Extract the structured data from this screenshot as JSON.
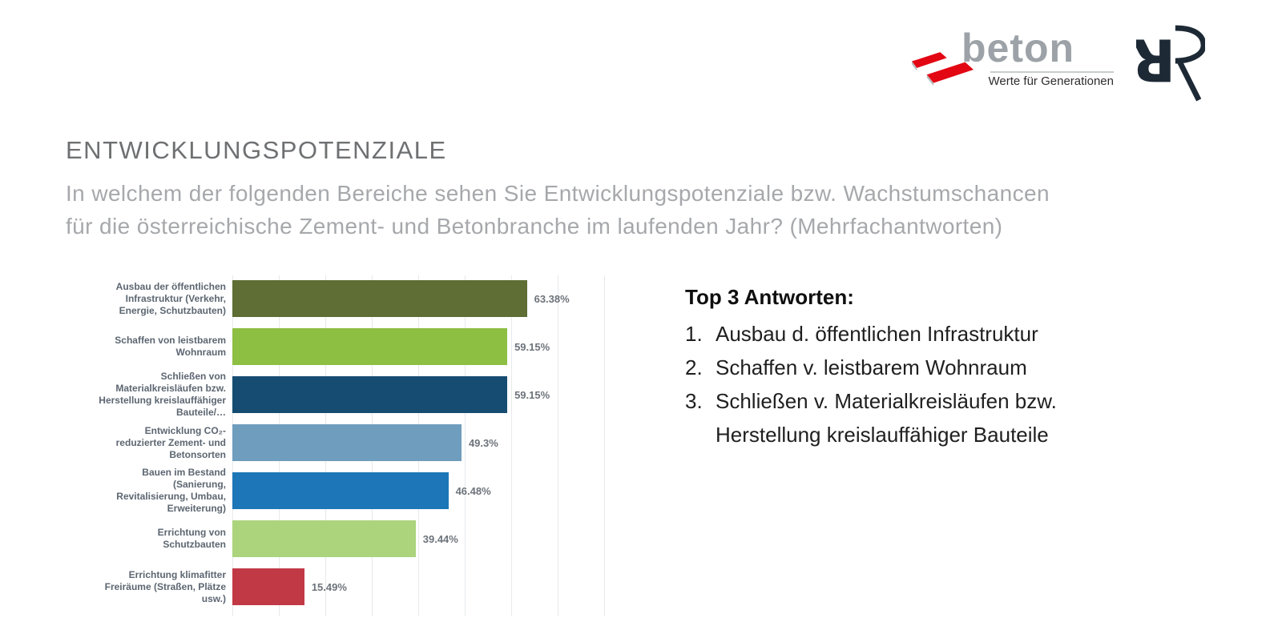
{
  "logo": {
    "brand": "beton",
    "tagline": "Werte für Generationen"
  },
  "title": "ENTWICKLUNGSPOTENZIALE",
  "subtitle": {
    "line1": "In welchem der folgenden Bereiche sehen Sie Entwicklungspotenziale bzw. Wachstumschancen",
    "line2": "für die österreichische Zement- und Betonbranche im laufenden Jahr? (Mehrfachantworten)"
  },
  "chart_data": {
    "type": "bar",
    "orientation": "horizontal",
    "categories": [
      "Ausbau der öffentlichen Infrastruktur (Verkehr, Energie, Schutzbauten)",
      "Schaffen von leistbarem Wohnraum",
      "Schließen von Materialkreisläufen bzw. Herstellung kreislauffähiger Bauteile/…",
      "Entwicklung CO₂-reduzierter Zement- und Betonsorten",
      "Bauen im Bestand (Sanierung, Revitalisierung, Umbau, Erweiterung)",
      "Errichtung von Schutzbauten",
      "Errichtung klimafitter Freiräume (Straßen, Plätze usw.)"
    ],
    "display_labels": [
      "Ausbau der öffentlichen\nInfrastruktur (Verkehr,\nEnergie, Schutzbauten)",
      "Schaffen von leistbarem\nWohnraum",
      "Schließen von\nMaterialkreisläufen bzw.\nHerstellung kreislauffähiger\nBauteile/…",
      "Entwicklung CO₂-\nreduzierter Zement- und\nBetonsorten",
      "Bauen im Bestand\n(Sanierung,\nRevitalisierung, Umbau,\nErweiterung)",
      "Errichtung von\nSchutzbauten",
      "Errichtung klimafitter\nFreiräume (Straßen, Plätze\nusw.)"
    ],
    "values": [
      63.38,
      59.15,
      59.15,
      49.3,
      46.48,
      39.44,
      15.49
    ],
    "value_labels": [
      "63.38%",
      "59.15%",
      "59.15%",
      "49.3%",
      "46.48%",
      "39.44%",
      "15.49%"
    ],
    "bar_colors": [
      "#5e6e35",
      "#8dbf43",
      "#164c72",
      "#6f9dbd",
      "#1d76b7",
      "#abd47d",
      "#c23946"
    ],
    "xlim": [
      0,
      80
    ],
    "gridline_interval": 10,
    "grid": true,
    "legend": false
  },
  "top3": {
    "heading": "Top 3 Antworten:",
    "items": [
      {
        "num": "1.",
        "text": "Ausbau d. öffentlichen Infrastruktur"
      },
      {
        "num": "2.",
        "text": "Schaffen v. leistbarem Wohnraum"
      },
      {
        "num": "3.",
        "text": "Schließen v. Materialkreisläufen bzw.\nHerstellung kreislauffähiger Bauteile"
      }
    ]
  },
  "colors": {
    "accent_red": "#e30613",
    "brand_gray": "#9ca2a7",
    "logo_navy": "#1d2935",
    "title_gray": "#6e7072",
    "subtitle_gray": "#a6a8ab",
    "label_slate": "#5c6671",
    "value_gray": "#6d737b",
    "gridline": "#e7e9eb"
  }
}
